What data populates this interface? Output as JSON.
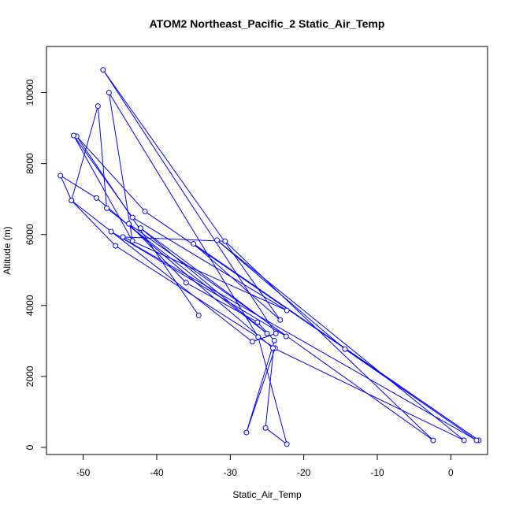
{
  "chart_data": {
    "type": "line",
    "title": "ATOM2 Northeast_Pacific_2 Static_Air_Temp",
    "xlabel": "Static_Air_Temp",
    "ylabel": "Altitude (m)",
    "xlim": [
      -55,
      5
    ],
    "ylim": [
      -200,
      11300
    ],
    "x_ticks": [
      -50,
      -40,
      -30,
      -20,
      -10,
      0
    ],
    "y_ticks": [
      0,
      2000,
      4000,
      6000,
      8000,
      10000
    ],
    "series_color": "#0000ff",
    "grid": false,
    "series": [
      {
        "marker": "open-circle",
        "points": [
          [
            -34.3,
            3720
          ],
          [
            -50.9,
            8770
          ],
          [
            -41.6,
            6650
          ],
          [
            3.8,
            200
          ],
          [
            -35.0,
            5740
          ],
          [
            -23.2,
            3590
          ],
          [
            -47.3,
            10640
          ],
          [
            -23.8,
            3210
          ],
          [
            -27.0,
            2980
          ],
          [
            -51.6,
            6960
          ],
          [
            -48.0,
            9620
          ],
          [
            -46.8,
            6740
          ],
          [
            -25.0,
            3210
          ],
          [
            -42.2,
            6180
          ],
          [
            -22.4,
            3130
          ],
          [
            -46.2,
            6080
          ],
          [
            3.5,
            200
          ],
          [
            -14.4,
            2770
          ],
          [
            -31.8,
            5840
          ],
          [
            1.8,
            200
          ],
          [
            -24.1,
            2800
          ],
          [
            -25.2,
            550
          ],
          [
            -22.3,
            90
          ],
          [
            -26.2,
            3110
          ],
          [
            -46.5,
            10000
          ],
          [
            -43.3,
            5820
          ],
          [
            -51.3,
            8790
          ],
          [
            -43.3,
            6480
          ],
          [
            -22.3,
            3860
          ],
          [
            -44.6,
            5930
          ],
          [
            -30.7,
            5810
          ],
          [
            -2.4,
            200
          ],
          [
            -43.8,
            6300
          ],
          [
            -36.0,
            4640
          ],
          [
            -26.3,
            3530
          ],
          [
            -24.0,
            3010
          ],
          [
            -27.8,
            420
          ],
          [
            -23.9,
            2800
          ],
          [
            -45.6,
            5680
          ],
          [
            -51.6,
            6960
          ],
          [
            -53.1,
            7660
          ],
          [
            -48.2,
            7030
          ],
          [
            -24.2,
            2800
          ]
        ]
      }
    ]
  }
}
